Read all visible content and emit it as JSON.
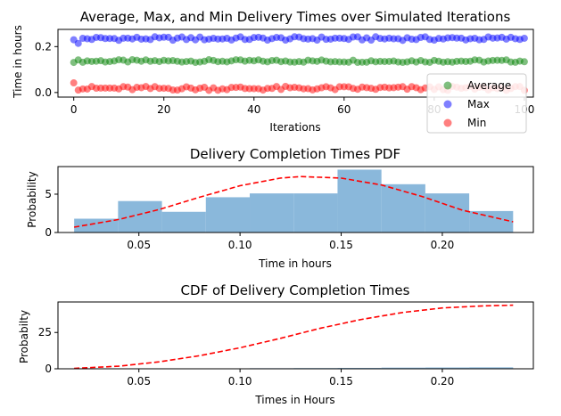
{
  "chart_data": [
    {
      "type": "scatter",
      "title": "Average, Max, and Min Delivery Times over Simulated Iterations",
      "xlabel": "Iterations",
      "ylabel": "Time in hours",
      "xlim": [
        -3.5,
        102
      ],
      "ylim": [
        -0.02,
        0.275
      ],
      "xticks": [
        0,
        20,
        40,
        60,
        80,
        100
      ],
      "xtick_labels": [
        "0",
        "20",
        "40",
        "60",
        "80",
        "100"
      ],
      "yticks": [
        0.0,
        0.2
      ],
      "ytick_labels": [
        "0.0",
        "0.2"
      ],
      "legend_position": "lower-right",
      "series": [
        {
          "name": "Average",
          "color": "#008000",
          "center": 0.137,
          "amplitude": 0.006
        },
        {
          "name": "Max",
          "color": "#0000ff",
          "center": 0.235,
          "amplitude": 0.008
        },
        {
          "name": "Min",
          "color": "#ff0000",
          "center": 0.018,
          "amplitude": 0.009
        }
      ]
    },
    {
      "type": "bar",
      "title": "Delivery Completion Times PDF",
      "xlabel": "Time in hours",
      "ylabel": "Probability",
      "xlim": [
        0.01,
        0.245
      ],
      "ylim": [
        0,
        8.6
      ],
      "xticks": [
        0.05,
        0.1,
        0.15,
        0.2
      ],
      "xtick_labels": [
        "0.05",
        "0.10",
        "0.15",
        "0.20"
      ],
      "yticks": [
        0,
        5
      ],
      "ytick_labels": [
        "0",
        "5"
      ],
      "bin_edges": [
        0.018,
        0.0397,
        0.0614,
        0.0831,
        0.1048,
        0.1265,
        0.1482,
        0.1699,
        0.1916,
        0.2133,
        0.235
      ],
      "values": [
        1.8,
        4.1,
        2.7,
        4.6,
        5.1,
        5.1,
        8.2,
        6.3,
        5.1,
        2.8
      ],
      "bar_color": "#8ab8db",
      "curve_color": "#ff0000",
      "curve_x": [
        0.018,
        0.04,
        0.06,
        0.08,
        0.1,
        0.12,
        0.13,
        0.15,
        0.17,
        0.19,
        0.21,
        0.235
      ],
      "curve_y": [
        0.7,
        1.7,
        3.0,
        4.6,
        6.1,
        7.1,
        7.3,
        7.1,
        6.2,
        4.7,
        2.9,
        1.4
      ]
    },
    {
      "type": "bar",
      "title": "CDF of Delivery Completion Times",
      "xlabel": "Times in Hours",
      "ylabel": "Probabilty",
      "xlim": [
        0.01,
        0.245
      ],
      "ylim": [
        0,
        46
      ],
      "xticks": [
        0.05,
        0.1,
        0.15,
        0.2
      ],
      "xtick_labels": [
        "0.05",
        "0.10",
        "0.15",
        "0.20"
      ],
      "yticks": [
        0,
        25
      ],
      "ytick_labels": [
        "0",
        "25"
      ],
      "bin_edges": [
        0.018,
        0.0397,
        0.0614,
        0.0831,
        0.1048,
        0.1265,
        0.1482,
        0.1699,
        0.1916,
        0.2133,
        0.235
      ],
      "values": [
        0.1,
        0.2,
        0.2,
        0.3,
        0.4,
        0.5,
        0.6,
        0.8,
        0.9,
        1.0
      ],
      "bar_color": "#8ab8db",
      "curve_color": "#ff0000",
      "curve_x": [
        0.018,
        0.04,
        0.06,
        0.08,
        0.1,
        0.12,
        0.14,
        0.16,
        0.18,
        0.2,
        0.22,
        0.235
      ],
      "curve_y": [
        0.3,
        1.8,
        4.8,
        9.0,
        14.5,
        21.0,
        28.0,
        34.0,
        38.7,
        41.9,
        43.3,
        43.8
      ]
    }
  ]
}
